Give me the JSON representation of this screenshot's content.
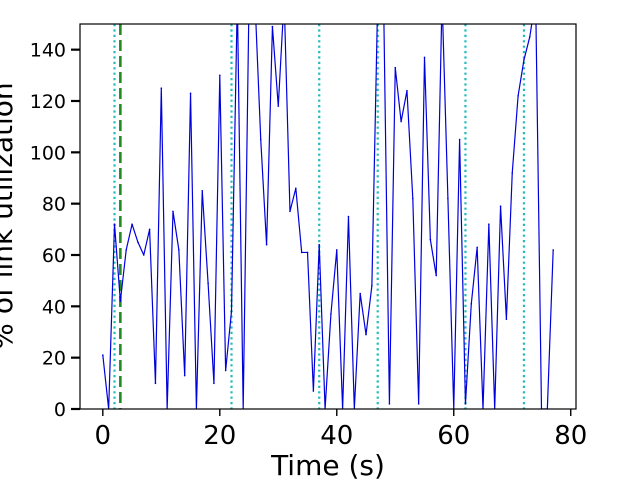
{
  "chart_data": {
    "type": "line",
    "xlabel": "Time (s)",
    "ylabel": "% of link utilization",
    "xlim": [
      -3.9,
      80.9
    ],
    "ylim": [
      0,
      150
    ],
    "xticks": [
      0,
      20,
      40,
      60,
      80
    ],
    "yticks": [
      0,
      20,
      40,
      60,
      80,
      100,
      120,
      140
    ],
    "grid": false,
    "colors": {
      "series": "#0000dd",
      "dotted": "#22bbbb",
      "dashed": "#228b22",
      "frame": "#000000"
    },
    "series": [
      {
        "x": [
          0,
          1,
          2,
          3,
          4,
          5,
          6,
          7,
          8,
          9,
          10,
          11,
          12,
          13,
          14,
          15,
          16,
          17,
          18,
          19,
          20,
          21,
          22,
          23,
          24,
          25,
          26,
          27,
          28,
          29,
          30,
          31,
          32,
          33,
          34,
          35,
          36,
          37,
          38,
          39,
          40,
          41,
          42,
          43,
          44,
          45,
          46,
          47,
          48,
          49,
          50,
          51,
          52,
          53,
          54,
          55,
          56,
          57,
          58,
          59,
          60,
          61,
          62,
          63,
          64,
          65,
          66,
          67,
          68,
          69,
          70,
          71,
          72,
          73,
          74,
          75,
          76,
          77
        ],
        "values": [
          21,
          0,
          72,
          42,
          62,
          72,
          65,
          60,
          70,
          10,
          125,
          0,
          77,
          62,
          13,
          123,
          0,
          85,
          49,
          10,
          130,
          15,
          38,
          160,
          0,
          160,
          160,
          105,
          64,
          149,
          118,
          160,
          77,
          86,
          61,
          61,
          7,
          64,
          0,
          37,
          62,
          0,
          75,
          0,
          45,
          29,
          48,
          160,
          160,
          2,
          133,
          112,
          124,
          82,
          2,
          137,
          66,
          52,
          160,
          82,
          0,
          105,
          2,
          41,
          63,
          0,
          72,
          0,
          79,
          35,
          92,
          122,
          136,
          145,
          160,
          0,
          0,
          62
        ]
      }
    ],
    "vlines_dotted": [
      2,
      22,
      37,
      47,
      62,
      72
    ],
    "vlines_dashed": [
      3
    ]
  }
}
